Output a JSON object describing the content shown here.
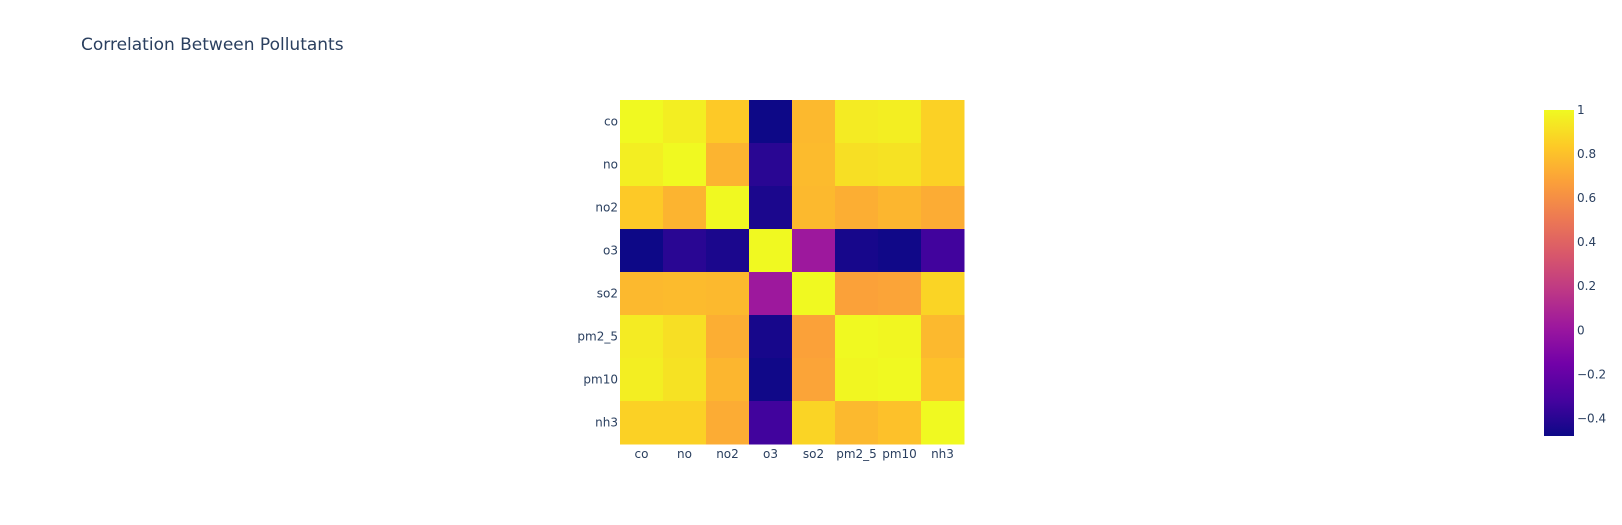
{
  "chart_data": {
    "type": "heatmap",
    "title": "Correlation Between Pollutants",
    "xlabel": "",
    "ylabel": "",
    "x": [
      "co",
      "no",
      "no2",
      "o3",
      "so2",
      "pm2_5",
      "pm10",
      "nh3"
    ],
    "y": [
      "co",
      "no",
      "no2",
      "o3",
      "so2",
      "pm2_5",
      "pm10",
      "nh3"
    ],
    "z": [
      [
        1.0,
        0.96,
        0.83,
        -0.48,
        0.77,
        0.95,
        0.96,
        0.86
      ],
      [
        0.96,
        1.0,
        0.75,
        -0.4,
        0.78,
        0.91,
        0.92,
        0.86
      ],
      [
        0.83,
        0.75,
        1.0,
        -0.44,
        0.77,
        0.73,
        0.76,
        0.72
      ],
      [
        -0.48,
        -0.4,
        -0.44,
        1.0,
        0.02,
        -0.45,
        -0.47,
        -0.33
      ],
      [
        0.77,
        0.78,
        0.77,
        0.02,
        1.0,
        0.68,
        0.69,
        0.87
      ],
      [
        0.95,
        0.91,
        0.73,
        -0.45,
        0.68,
        1.0,
        0.99,
        0.77
      ],
      [
        0.96,
        0.92,
        0.76,
        -0.47,
        0.69,
        0.99,
        1.0,
        0.8
      ],
      [
        0.86,
        0.86,
        0.72,
        -0.33,
        0.87,
        0.77,
        0.8,
        1.0
      ]
    ],
    "zrange": [
      -0.48,
      1.0
    ],
    "colorscale": "plasma",
    "colorscale_stops": [
      "#0d0887",
      "#46039f",
      "#7201a8",
      "#9c179e",
      "#bd3786",
      "#d8576b",
      "#ed7953",
      "#fb9f3a",
      "#fdca26",
      "#f0f921"
    ],
    "colorbar": {
      "tickvals": [
        1,
        0.8,
        0.6,
        0.4,
        0.2,
        0,
        -0.2,
        -0.4
      ],
      "ticktext": [
        "1",
        "0.8",
        "0.6",
        "0.4",
        "0.2",
        "0",
        "−0.2",
        "−0.4"
      ]
    },
    "grid": false,
    "legend": "none"
  },
  "colors": {
    "text": "#2a3f5f",
    "background": "#ffffff"
  }
}
